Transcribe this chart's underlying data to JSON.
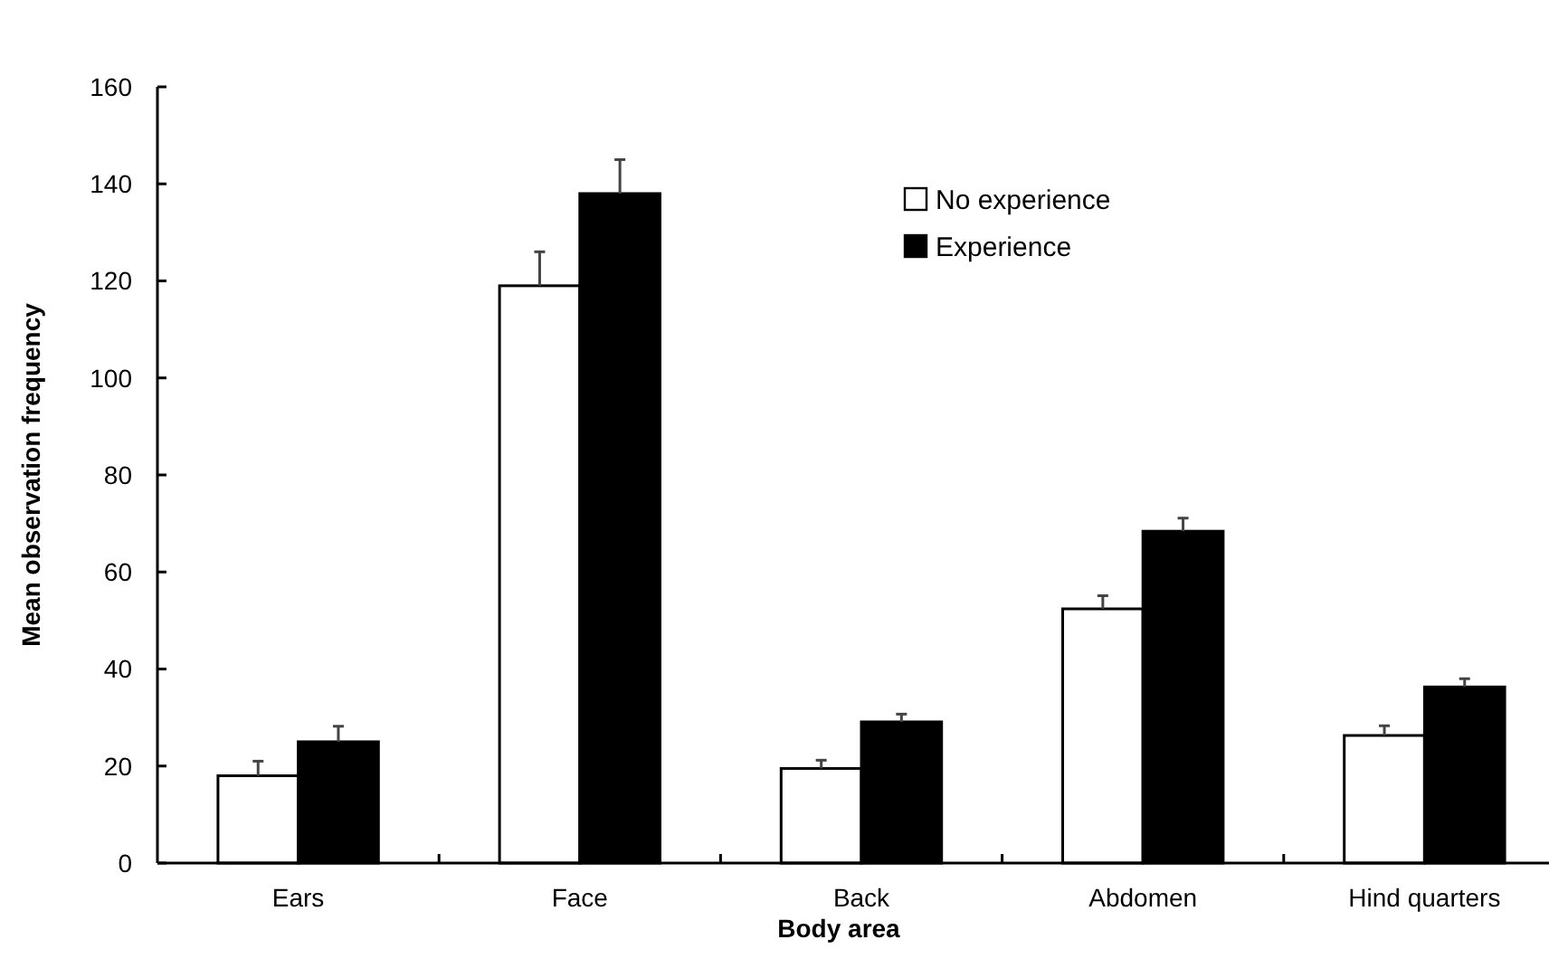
{
  "chart_data": {
    "type": "bar",
    "xlabel": "Body area",
    "ylabel": "Mean observation frequency",
    "categories": [
      "Ears",
      "Face",
      "Back",
      "Abdomen",
      "Hind quarters"
    ],
    "series": [
      {
        "name": "No experience",
        "color": "#ffffff",
        "values": [
          18,
          119,
          19.5,
          52.4,
          26.3
        ],
        "errors": [
          3,
          7,
          1.7,
          2.7,
          2
        ]
      },
      {
        "name": "Experience",
        "color": "#000000",
        "values": [
          25,
          138,
          29.1,
          68.4,
          36.3
        ],
        "errors": [
          3.2,
          7,
          1.6,
          2.7,
          1.7
        ]
      }
    ],
    "ylim": [
      0,
      160
    ],
    "yticks": [
      0,
      20,
      40,
      60,
      80,
      100,
      120,
      140,
      160
    ],
    "grid": false,
    "legend": "top right"
  }
}
